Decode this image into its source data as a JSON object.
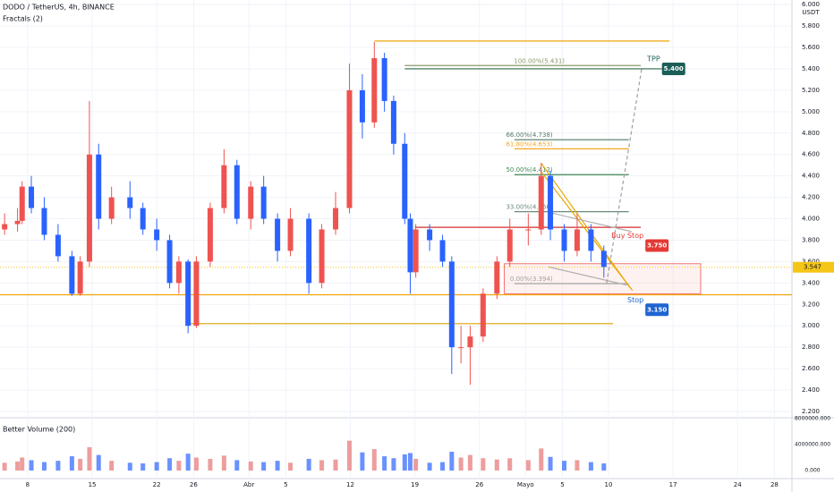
{
  "header": {
    "title": "DODO / TetherUS, 4h, BINANCE",
    "indicator": "Fractals (2)",
    "currency": "USDT"
  },
  "chart_data": [
    {
      "type": "candlestick",
      "x": [
        5.5,
        6.9,
        7.4,
        8.4,
        9.8,
        11.3,
        12.8,
        13.7,
        14.7,
        15.7,
        17.1,
        19.1,
        20.5,
        22.0,
        23.4,
        24.4,
        25.4,
        26.3,
        27.8,
        29.3,
        30.7,
        32.2,
        33.6,
        35.1,
        36.5,
        38.5,
        39.9,
        41.4,
        42.9,
        44.3,
        45.6,
        46.7,
        47.7,
        48.9,
        49.5,
        50.1,
        51.6,
        53.0,
        54.0,
        55.0,
        56.0,
        57.4,
        58.9,
        60.3,
        62.3,
        63.7,
        64.7,
        66.2,
        67.6,
        69.1,
        70.5
      ],
      "open": [
        3.9,
        3.95,
        3.98,
        4.3,
        4.1,
        3.85,
        3.65,
        3.3,
        3.6,
        4.6,
        4.0,
        4.2,
        4.1,
        3.9,
        3.8,
        3.4,
        3.6,
        3.0,
        3.6,
        4.1,
        4.5,
        4.0,
        4.3,
        4.0,
        3.7,
        4.0,
        3.4,
        3.9,
        4.1,
        5.2,
        4.9,
        5.5,
        5.1,
        4.7,
        4.0,
        3.5,
        3.9,
        3.8,
        3.6,
        2.8,
        2.8,
        2.9,
        3.3,
        3.6,
        3.9,
        3.9,
        4.4,
        3.9,
        3.7,
        3.9,
        3.7
      ],
      "high": [
        4.05,
        4.1,
        4.35,
        4.4,
        4.2,
        3.95,
        3.7,
        3.65,
        5.1,
        4.7,
        4.3,
        4.35,
        4.15,
        4.0,
        3.85,
        3.65,
        3.62,
        3.65,
        4.15,
        4.65,
        4.55,
        4.35,
        4.4,
        4.05,
        4.1,
        4.05,
        3.95,
        4.25,
        5.45,
        5.35,
        5.65,
        5.55,
        5.15,
        4.8,
        4.05,
        3.95,
        3.95,
        3.85,
        3.65,
        3.0,
        3.0,
        3.35,
        3.65,
        4.0,
        4.05,
        4.52,
        4.45,
        3.95,
        4.05,
        3.95,
        3.75
      ],
      "low": [
        3.85,
        3.88,
        3.95,
        4.05,
        3.8,
        3.6,
        3.28,
        3.28,
        3.55,
        3.9,
        3.95,
        4.0,
        3.85,
        3.7,
        3.35,
        3.3,
        2.93,
        2.98,
        3.55,
        4.05,
        3.95,
        3.9,
        3.95,
        3.6,
        3.65,
        3.3,
        3.35,
        3.85,
        4.05,
        4.75,
        4.85,
        5.0,
        4.6,
        3.95,
        3.3,
        3.45,
        3.7,
        3.55,
        2.55,
        2.65,
        2.45,
        2.85,
        3.25,
        3.55,
        3.75,
        3.85,
        3.8,
        3.6,
        3.65,
        3.6,
        3.45
      ],
      "close": [
        3.95,
        3.98,
        4.3,
        4.1,
        3.85,
        3.65,
        3.3,
        3.6,
        4.6,
        4.0,
        4.2,
        4.1,
        3.9,
        3.8,
        3.4,
        3.6,
        3.0,
        3.6,
        4.1,
        4.5,
        4.0,
        4.3,
        4.0,
        3.7,
        4.0,
        3.4,
        3.9,
        4.1,
        5.2,
        4.9,
        5.5,
        5.1,
        4.7,
        4.0,
        3.5,
        3.9,
        3.8,
        3.6,
        2.8,
        2.8,
        2.9,
        3.3,
        3.6,
        3.9,
        3.9,
        4.4,
        3.9,
        3.7,
        3.9,
        3.7,
        3.55
      ],
      "up_color": "#ef5350",
      "down_color": "#2962ff",
      "xlim": [
        5.0,
        90.9
      ],
      "xticks": [
        {
          "value": 8,
          "label": "8"
        },
        {
          "value": 15,
          "label": "15"
        },
        {
          "value": 22,
          "label": "22"
        },
        {
          "value": 26,
          "label": "26"
        },
        {
          "value": 32,
          "label": "Abr"
        },
        {
          "value": 36,
          "label": "5"
        },
        {
          "value": 43,
          "label": "12"
        },
        {
          "value": 50,
          "label": "19"
        },
        {
          "value": 57,
          "label": "26"
        },
        {
          "value": 62,
          "label": "Mayo"
        },
        {
          "value": 66,
          "label": "5"
        },
        {
          "value": 71,
          "label": "10"
        },
        {
          "value": 78,
          "label": "17"
        },
        {
          "value": 85,
          "label": "24"
        },
        {
          "value": 89,
          "label": "28"
        }
      ],
      "ylim": [
        2.158,
        6.043
      ],
      "yticks": [
        {
          "value": 2.2,
          "label": "2.200"
        },
        {
          "value": 2.4,
          "label": "2.400"
        },
        {
          "value": 2.6,
          "label": "2.600"
        },
        {
          "value": 2.8,
          "label": "2.800"
        },
        {
          "value": 3.0,
          "label": "3.000"
        },
        {
          "value": 3.2,
          "label": "3.200"
        },
        {
          "value": 3.4,
          "label": "3.400"
        },
        {
          "value": 3.6,
          "label": "3.600"
        },
        {
          "value": 3.8,
          "label": "3.800"
        },
        {
          "value": 4.0,
          "label": "4.000"
        },
        {
          "value": 4.2,
          "label": "4.200"
        },
        {
          "value": 4.4,
          "label": "4.400"
        },
        {
          "value": 4.6,
          "label": "4.600"
        },
        {
          "value": 4.8,
          "label": "4.800"
        },
        {
          "value": 5.0,
          "label": "5.000"
        },
        {
          "value": 5.2,
          "label": "5.200"
        },
        {
          "value": 5.4,
          "label": "5.400"
        },
        {
          "value": 5.6,
          "label": "5.600"
        },
        {
          "value": 5.8,
          "label": "5.800"
        },
        {
          "value": 6.0,
          "label": "6.000"
        }
      ],
      "grid": true,
      "last_price": {
        "value": 3.547,
        "label": "3.547",
        "color": "#f5c518"
      },
      "levels": [
        {
          "value": 5.66,
          "from": 45.6,
          "to": 77.6,
          "color": "#f0a30a"
        },
        {
          "value": 5.431,
          "from": 48.9,
          "to": 74.5,
          "color": "#8a9a6a",
          "label": "100.00%(5.431)"
        },
        {
          "value": 5.4,
          "from": 48.9,
          "to": 76.8,
          "color": "#2e6b4a"
        },
        {
          "value": 4.738,
          "from": 60.8,
          "to": 73.2,
          "color": "#4f7a63",
          "label": "66.00%(4.738)"
        },
        {
          "value": 4.653,
          "from": 60.8,
          "to": 73.2,
          "color": "#f5a623",
          "label": "61.80%(4.653)"
        },
        {
          "value": 4.412,
          "from": 60.8,
          "to": 73.2,
          "color": "#3f8a55",
          "label": "50.00%(4.412)"
        },
        {
          "value": 4.066,
          "from": 60.8,
          "to": 73.2,
          "color": "#6b8a78",
          "label": "33.00%(4.066)"
        },
        {
          "value": 3.394,
          "from": 60.8,
          "to": 73.2,
          "color": "#9e9e9e",
          "label": "0.00%(3.394)"
        },
        {
          "value": 3.92,
          "from": 50.0,
          "to": 74.5,
          "color": "#d32f2f"
        },
        {
          "value": 3.29,
          "from": 5.0,
          "to": 90.9,
          "color": "#f0a30a"
        },
        {
          "value": 3.02,
          "from": 25.4,
          "to": 71.5,
          "color": "#e0a000"
        }
      ],
      "box": {
        "low": 3.3,
        "high": 3.58,
        "from": 59.7,
        "to": 81.0,
        "color": "#ef5350"
      },
      "trendlines": [
        {
          "x": [
            63.7,
            73.3
          ],
          "y": [
            4.52,
            3.36
          ],
          "color": "#e6a800"
        },
        {
          "x": [
            63.7,
            73.6
          ],
          "y": [
            4.44,
            3.33
          ],
          "color": "#e6a800"
        },
        {
          "x": [
            64.5,
            73.5
          ],
          "y": [
            4.06,
            3.88
          ],
          "color": "#b0b0b0"
        },
        {
          "x": [
            64.5,
            73.0
          ],
          "y": [
            3.55,
            3.38
          ],
          "color": "#b0b0b0"
        },
        {
          "x": [
            70.8,
            74.6
          ],
          "y": [
            3.4,
            5.4
          ],
          "color": "#9e9e9e"
        }
      ],
      "badges": [
        {
          "name": "TPP",
          "value": 5.4,
          "label": "5.400",
          "x": 76.8,
          "color": "#1b5e57"
        },
        {
          "name": "Buy Stop",
          "value": 3.75,
          "label": "3.750",
          "x": 75.0,
          "color": "#e53935"
        },
        {
          "name": "Stop",
          "value": 3.15,
          "label": "3.150",
          "x": 75.0,
          "color": "#1e64d2"
        }
      ]
    },
    {
      "type": "bar",
      "title": "Better Volume (200)",
      "x": [
        5.5,
        6.9,
        7.4,
        8.4,
        9.8,
        11.3,
        12.8,
        13.7,
        14.7,
        15.7,
        17.1,
        19.1,
        20.5,
        22.0,
        23.4,
        24.4,
        25.4,
        26.3,
        27.8,
        29.3,
        30.7,
        32.2,
        33.6,
        35.1,
        36.5,
        38.5,
        39.9,
        41.4,
        42.9,
        44.3,
        45.6,
        46.7,
        47.7,
        48.9,
        49.5,
        50.1,
        51.6,
        53.0,
        54.0,
        55.0,
        56.0,
        57.4,
        58.9,
        60.3,
        62.3,
        63.7,
        64.7,
        66.2,
        67.6,
        69.1,
        70.5
      ],
      "values": [
        1200000,
        1400000,
        2000000,
        1600000,
        1300000,
        1500000,
        2200000,
        1800000,
        3600000,
        2400000,
        1500000,
        1200000,
        1100000,
        1300000,
        1900000,
        1500000,
        2600000,
        2000000,
        1800000,
        2300000,
        1600000,
        1400000,
        1300000,
        1500000,
        1200000,
        1800000,
        1600000,
        1700000,
        4600000,
        2800000,
        3300000,
        2200000,
        1900000,
        2500000,
        2700000,
        1800000,
        1200000,
        1300000,
        2900000,
        2000000,
        2400000,
        1900000,
        1700000,
        1900000,
        1600000,
        3400000,
        2100000,
        1500000,
        1600000,
        1300000,
        1100000
      ],
      "color": "#e57373",
      "ylim": [
        -1240000,
        8000000
      ],
      "yticks": [
        {
          "value": 0,
          "label": "0.000"
        },
        {
          "value": 4000000,
          "label": "4000000.000"
        },
        {
          "value": 8000000,
          "label": "8000000.000"
        }
      ]
    }
  ]
}
